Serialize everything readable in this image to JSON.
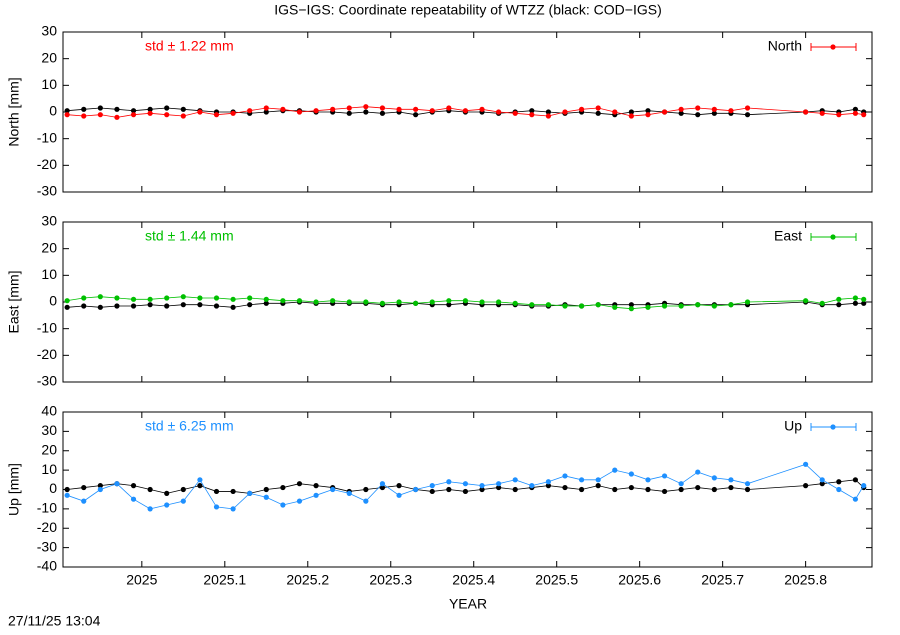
{
  "title": "IGS−IGS: Coordinate repeatability of WTZZ (black: COD−IGS)",
  "xlabel": "YEAR",
  "timestamp": "27/11/25 13:04",
  "chart_data": [
    {
      "type": "line",
      "ylabel": "North [mm]",
      "annotation": "std ± 1.22 mm",
      "xlim": [
        2024.905,
        2025.88
      ],
      "xticks": [
        2025,
        2025.1,
        2025.2,
        2025.3,
        2025.4,
        2025.5,
        2025.6,
        2025.7,
        2025.8
      ],
      "ylim": [
        -30,
        30
      ],
      "yticks": [
        -30,
        -20,
        -10,
        0,
        10,
        20,
        30
      ],
      "x": [
        2024.91,
        2024.93,
        2024.95,
        2024.97,
        2024.99,
        2025.01,
        2025.03,
        2025.05,
        2025.07,
        2025.09,
        2025.11,
        2025.13,
        2025.15,
        2025.17,
        2025.19,
        2025.21,
        2025.23,
        2025.25,
        2025.27,
        2025.29,
        2025.31,
        2025.33,
        2025.35,
        2025.37,
        2025.39,
        2025.41,
        2025.43,
        2025.45,
        2025.47,
        2025.49,
        2025.51,
        2025.53,
        2025.55,
        2025.57,
        2025.59,
        2025.61,
        2025.63,
        2025.65,
        2025.67,
        2025.69,
        2025.71,
        2025.73,
        2025.8,
        2025.82,
        2025.84,
        2025.86,
        2025.87
      ],
      "series": [
        {
          "color": "#000000",
          "values": [
            0.5,
            1,
            1.5,
            1,
            0.5,
            1,
            1.5,
            1,
            0.5,
            0,
            0,
            -0.5,
            0,
            0.5,
            0.5,
            0,
            0,
            -0.5,
            0,
            -0.5,
            0,
            -1,
            0,
            0.5,
            0,
            0,
            -0.5,
            0,
            0.5,
            0,
            -0.5,
            0,
            -0.5,
            -1,
            0,
            0.5,
            0,
            -0.5,
            -1,
            -0.5,
            -0.5,
            -1,
            0,
            0.5,
            0,
            1,
            0
          ]
        },
        {
          "name": "North",
          "color": "#ff0000",
          "values": [
            -1,
            -1.5,
            -1,
            -2,
            -1,
            -0.5,
            -1,
            -1.5,
            0,
            -1,
            -0.5,
            0.5,
            1.5,
            1,
            0,
            0.5,
            1,
            1.5,
            2,
            1.5,
            1,
            1,
            0.5,
            1.5,
            0.5,
            1,
            0,
            -0.5,
            -1,
            -1.5,
            0,
            1,
            1.5,
            0,
            -1.5,
            -1,
            0,
            1,
            1.5,
            1,
            0.5,
            1.5,
            0,
            -0.5,
            -1,
            -0.5,
            -1
          ]
        }
      ]
    },
    {
      "type": "line",
      "ylabel": "East [mm]",
      "annotation": "std ± 1.44 mm",
      "xlim": [
        2024.905,
        2025.88
      ],
      "xticks": [
        2025,
        2025.1,
        2025.2,
        2025.3,
        2025.4,
        2025.5,
        2025.6,
        2025.7,
        2025.8
      ],
      "ylim": [
        -30,
        30
      ],
      "yticks": [
        -30,
        -20,
        -10,
        0,
        10,
        20,
        30
      ],
      "x": [
        2024.91,
        2024.93,
        2024.95,
        2024.97,
        2024.99,
        2025.01,
        2025.03,
        2025.05,
        2025.07,
        2025.09,
        2025.11,
        2025.13,
        2025.15,
        2025.17,
        2025.19,
        2025.21,
        2025.23,
        2025.25,
        2025.27,
        2025.29,
        2025.31,
        2025.33,
        2025.35,
        2025.37,
        2025.39,
        2025.41,
        2025.43,
        2025.45,
        2025.47,
        2025.49,
        2025.51,
        2025.53,
        2025.55,
        2025.57,
        2025.59,
        2025.61,
        2025.63,
        2025.65,
        2025.67,
        2025.69,
        2025.71,
        2025.73,
        2025.8,
        2025.82,
        2025.84,
        2025.86,
        2025.87
      ],
      "series": [
        {
          "color": "#000000",
          "values": [
            -2,
            -1.5,
            -2,
            -1.5,
            -1.5,
            -1,
            -1.5,
            -1,
            -1,
            -1.5,
            -2,
            -1,
            -0.5,
            -0.5,
            0,
            -0.5,
            -0.5,
            -0.5,
            -0.5,
            -1,
            -1,
            -0.5,
            -1,
            -1,
            -0.5,
            -1,
            -1,
            -1,
            -1.5,
            -1.5,
            -1,
            -1.5,
            -1,
            -1,
            -1,
            -1,
            -0.5,
            -1,
            -1,
            -1,
            -1,
            -1,
            0,
            -1,
            -1,
            -0.5,
            -0.5
          ]
        },
        {
          "name": "East",
          "color": "#00c000",
          "values": [
            0.5,
            1.5,
            2,
            1.5,
            1,
            1,
            1.5,
            2,
            1.5,
            1.5,
            1,
            1.5,
            1,
            0.5,
            0.5,
            0,
            0.5,
            0,
            0,
            -0.5,
            0,
            -0.5,
            0,
            0.5,
            0.5,
            0,
            0,
            -0.5,
            -1,
            -1,
            -1.5,
            -1.5,
            -1,
            -2,
            -2.5,
            -2,
            -1.5,
            -1.5,
            -1,
            -1.5,
            -1,
            0,
            0.5,
            -0.5,
            1,
            1.5,
            1
          ]
        }
      ]
    },
    {
      "type": "line",
      "ylabel": "Up [mm]",
      "annotation": "std ± 6.25 mm",
      "xlim": [
        2024.905,
        2025.88
      ],
      "xticks": [
        2025,
        2025.1,
        2025.2,
        2025.3,
        2025.4,
        2025.5,
        2025.6,
        2025.7,
        2025.8
      ],
      "ylim": [
        -40,
        40
      ],
      "yticks": [
        -40,
        -30,
        -20,
        -10,
        0,
        10,
        20,
        30,
        40
      ],
      "x": [
        2024.91,
        2024.93,
        2024.95,
        2024.97,
        2024.99,
        2025.01,
        2025.03,
        2025.05,
        2025.07,
        2025.09,
        2025.11,
        2025.13,
        2025.15,
        2025.17,
        2025.19,
        2025.21,
        2025.23,
        2025.25,
        2025.27,
        2025.29,
        2025.31,
        2025.33,
        2025.35,
        2025.37,
        2025.39,
        2025.41,
        2025.43,
        2025.45,
        2025.47,
        2025.49,
        2025.51,
        2025.53,
        2025.55,
        2025.57,
        2025.59,
        2025.61,
        2025.63,
        2025.65,
        2025.67,
        2025.69,
        2025.71,
        2025.73,
        2025.8,
        2025.82,
        2025.84,
        2025.86,
        2025.87
      ],
      "series": [
        {
          "color": "#000000",
          "values": [
            0,
            1,
            2,
            3,
            2,
            0,
            -2,
            0,
            2,
            -1,
            -1,
            -2,
            0,
            1,
            3,
            2,
            1,
            -1,
            0,
            1,
            2,
            0,
            -1,
            0,
            -1,
            0,
            1,
            0,
            1,
            2,
            1,
            0,
            2,
            0,
            1,
            0,
            -1,
            0,
            1,
            0,
            1,
            0,
            2,
            3,
            4,
            5,
            1
          ]
        },
        {
          "name": "Up",
          "color": "#1e90ff",
          "values": [
            -3,
            -6,
            0,
            3,
            -5,
            -10,
            -8,
            -6,
            5,
            -9,
            -10,
            -2,
            -4,
            -8,
            -6,
            -3,
            0,
            -2,
            -6,
            3,
            -3,
            0,
            2,
            4,
            3,
            2,
            3,
            5,
            2,
            4,
            7,
            5,
            5,
            10,
            8,
            5,
            7,
            3,
            9,
            6,
            5,
            3,
            13,
            5,
            0,
            -5,
            2
          ]
        }
      ]
    }
  ]
}
